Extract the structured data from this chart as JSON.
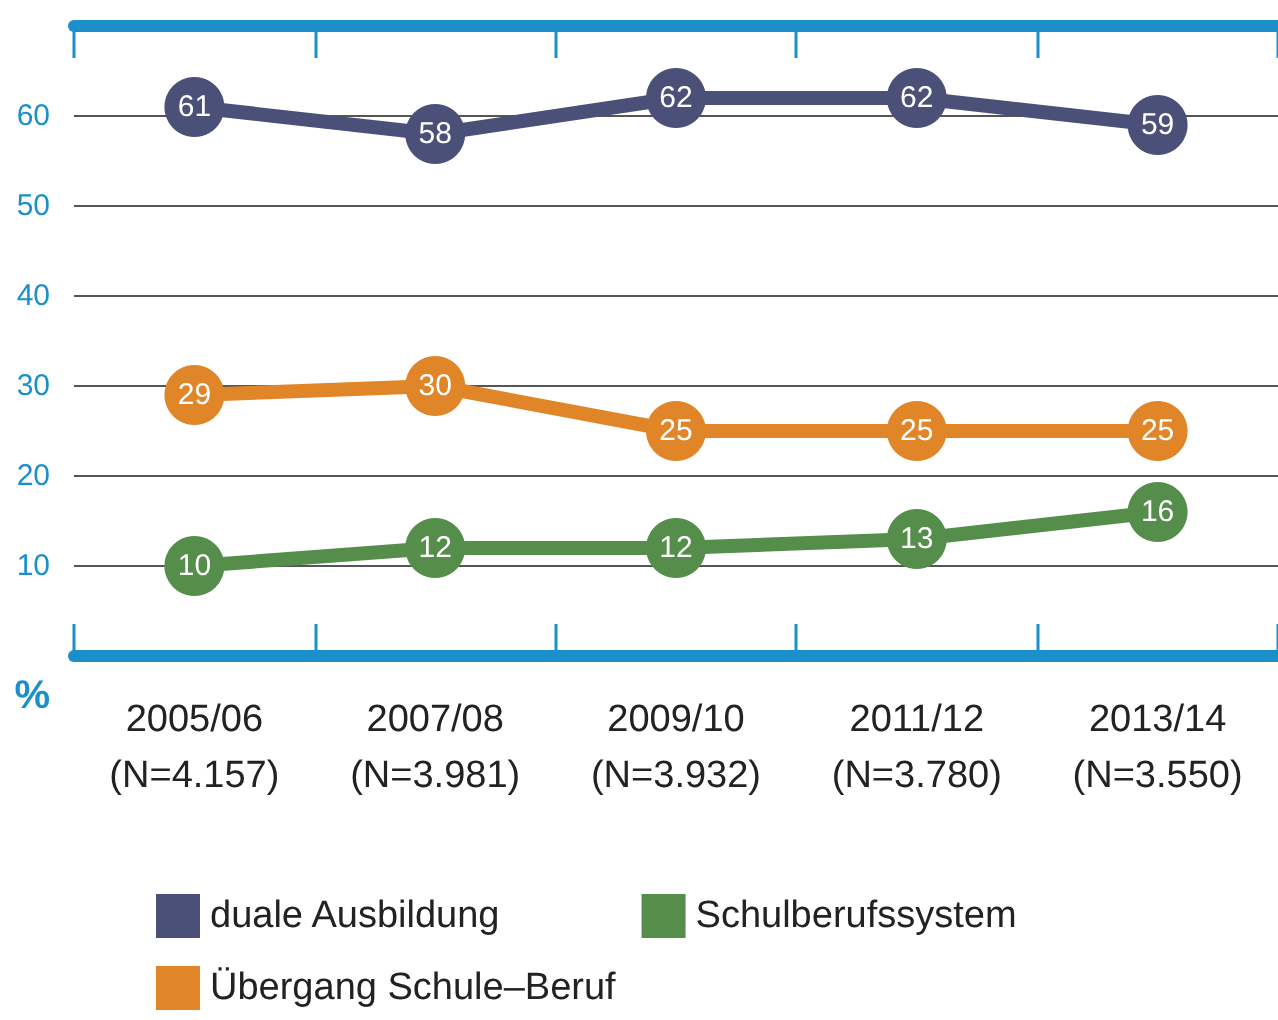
{
  "chart_data": {
    "type": "line",
    "ylabel": "%",
    "categories": [
      "2005/06\n(N=4.157)",
      "2007/08\n(N=3.981)",
      "2009/10\n(N=3.932)",
      "2011/12\n(N=3.780)",
      "2013/14\n(N=3.550)"
    ],
    "series": [
      {
        "name": "duale Ausbildung",
        "color": "#4a5078",
        "values": [
          61,
          58,
          62,
          62,
          59
        ]
      },
      {
        "name": "Schulberufssystem",
        "color": "#558e4a",
        "values": [
          10,
          12,
          12,
          13,
          16
        ]
      },
      {
        "name": "Übergang Schule–Beruf",
        "color": "#e08628",
        "values": [
          29,
          30,
          25,
          25,
          25
        ]
      }
    ],
    "ylim": [
      0,
      70
    ],
    "yticks": [
      10,
      20,
      30,
      40,
      50,
      60
    ],
    "grid": "y",
    "legend": "bottom",
    "marker": "circle",
    "line_style": "solid",
    "data_labels": true
  }
}
